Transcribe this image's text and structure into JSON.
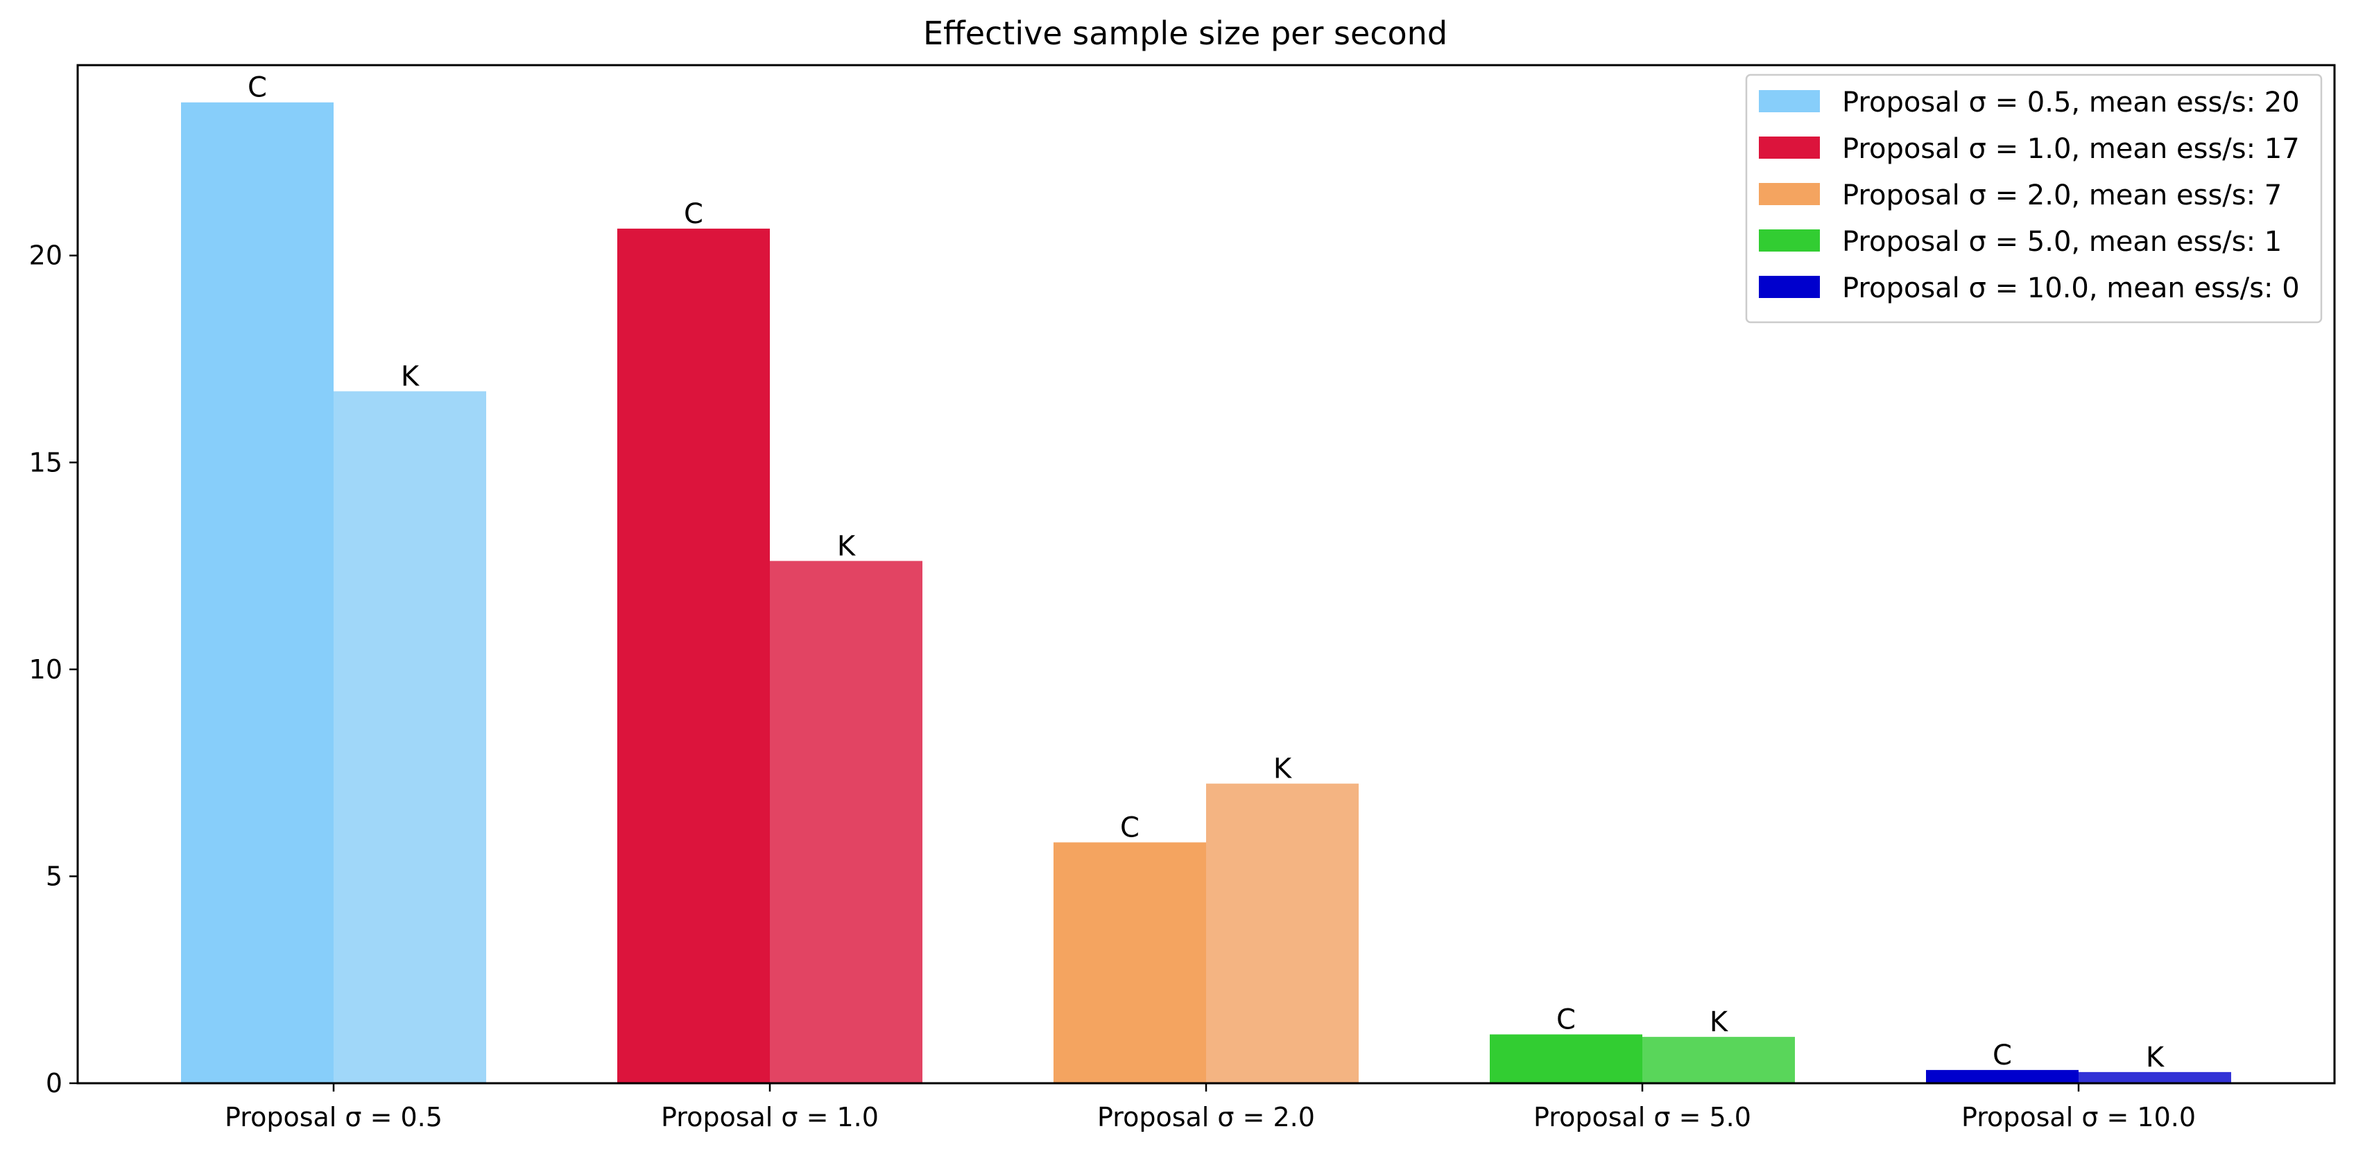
{
  "chart_data": {
    "type": "bar",
    "title": "Effective sample size per second",
    "xlabel": "",
    "ylabel": "",
    "ylim": [
      0,
      24.6
    ],
    "yticks": [
      0,
      5,
      10,
      15,
      20
    ],
    "categories": [
      "Proposal σ = 0.5",
      "Proposal σ = 1.0",
      "Proposal σ = 2.0",
      "Proposal σ = 5.0",
      "Proposal σ = 10.0"
    ],
    "series": [
      {
        "bar_label": "C",
        "values": [
          23.7,
          20.65,
          5.82,
          1.18,
          0.32
        ]
      },
      {
        "bar_label": "K",
        "values": [
          16.72,
          12.62,
          7.24,
          1.12,
          0.27
        ]
      }
    ],
    "colors": [
      {
        "main": "#87CEFA",
        "light": "#A0D7F9"
      },
      {
        "main": "#DC143C",
        "light": "#E24463"
      },
      {
        "main": "#F4A460",
        "light": "#F4B482"
      },
      {
        "main": "#32CD32",
        "light": "#59D65A"
      },
      {
        "main": "#0000CD",
        "light": "#3333D6"
      }
    ],
    "grid": false,
    "legend_position": "top-right",
    "legend": [
      "Proposal σ = 0.5, mean ess/s: 20",
      "Proposal σ = 1.0, mean ess/s: 17",
      "Proposal σ = 2.0, mean ess/s: 7",
      "Proposal σ = 5.0, mean ess/s: 1",
      "Proposal σ = 10.0, mean ess/s: 0"
    ]
  }
}
